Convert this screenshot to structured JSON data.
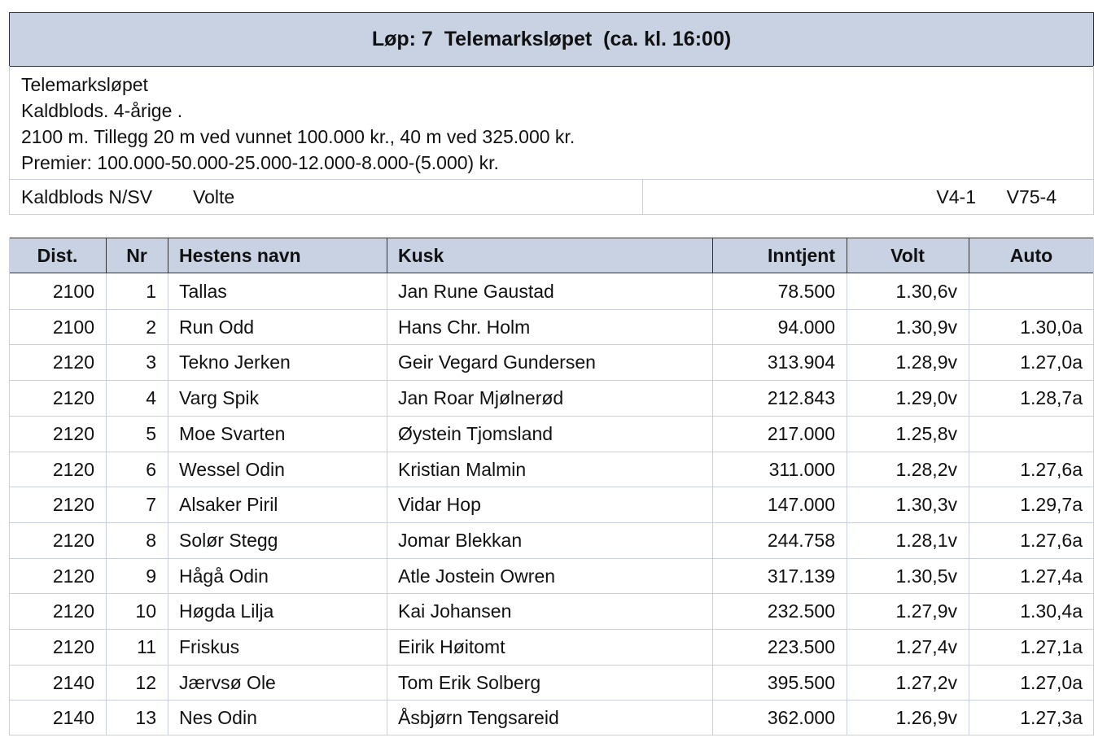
{
  "header": {
    "title": "Løp: 7  Telemarksløpet  (ca. kl. 16:00)"
  },
  "info": {
    "lines": [
      "Telemarksløpet",
      "Kaldblods. 4-årige .",
      "2100 m. Tillegg 20 m ved vunnet 100.000 kr., 40 m ved 325.000 kr.",
      "Premier: 100.000-50.000-25.000-12.000-8.000-(5.000) kr."
    ],
    "left": [
      "Kaldblods N/SV",
      "Volte"
    ],
    "right": [
      "V4-1",
      "V75-4"
    ]
  },
  "table": {
    "columns": [
      "Dist.",
      "Nr",
      "Hestens navn",
      "Kusk",
      "Inntjent",
      "Volt",
      "Auto"
    ],
    "rows": [
      [
        "2100",
        "1",
        "Tallas",
        "Jan Rune Gaustad",
        "78.500",
        "1.30,6v",
        null
      ],
      [
        "2100",
        "2",
        "Run Odd",
        "Hans Chr. Holm",
        "94.000",
        "1.30,9v",
        "1.30,0a"
      ],
      [
        "2120",
        "3",
        "Tekno Jerken",
        "Geir Vegard Gundersen",
        "313.904",
        "1.28,9v",
        "1.27,0a"
      ],
      [
        "2120",
        "4",
        "Varg Spik",
        "Jan Roar Mjølnerød",
        "212.843",
        "1.29,0v",
        "1.28,7a"
      ],
      [
        "2120",
        "5",
        "Moe Svarten",
        "Øystein Tjomsland",
        "217.000",
        "1.25,8v",
        null
      ],
      [
        "2120",
        "6",
        "Wessel Odin",
        "Kristian Malmin",
        "311.000",
        "1.28,2v",
        "1.27,6a"
      ],
      [
        "2120",
        "7",
        "Alsaker Piril",
        "Vidar Hop",
        "147.000",
        "1.30,3v",
        "1.29,7a"
      ],
      [
        "2120",
        "8",
        "Solør Stegg",
        "Jomar Blekkan",
        "244.758",
        "1.28,1v",
        "1.27,6a"
      ],
      [
        "2120",
        "9",
        "Hågå Odin",
        "Atle Jostein Owren",
        "317.139",
        "1.30,5v",
        "1.27,4a"
      ],
      [
        "2120",
        "10",
        "Høgda Lilja",
        "Kai Johansen",
        "232.500",
        "1.27,9v",
        "1.30,4a"
      ],
      [
        "2120",
        "11",
        "Friskus",
        "Eirik Høitomt",
        "223.500",
        "1.27,4v",
        "1.27,1a"
      ],
      [
        "2140",
        "12",
        "Jærvsø Ole",
        "Tom Erik Solberg",
        "395.500",
        "1.27,2v",
        "1.27,0a"
      ],
      [
        "2140",
        "13",
        "Nes Odin",
        "Åsbjørn Tengsareid",
        "362.000",
        "1.26,9v",
        "1.27,3a"
      ]
    ]
  }
}
